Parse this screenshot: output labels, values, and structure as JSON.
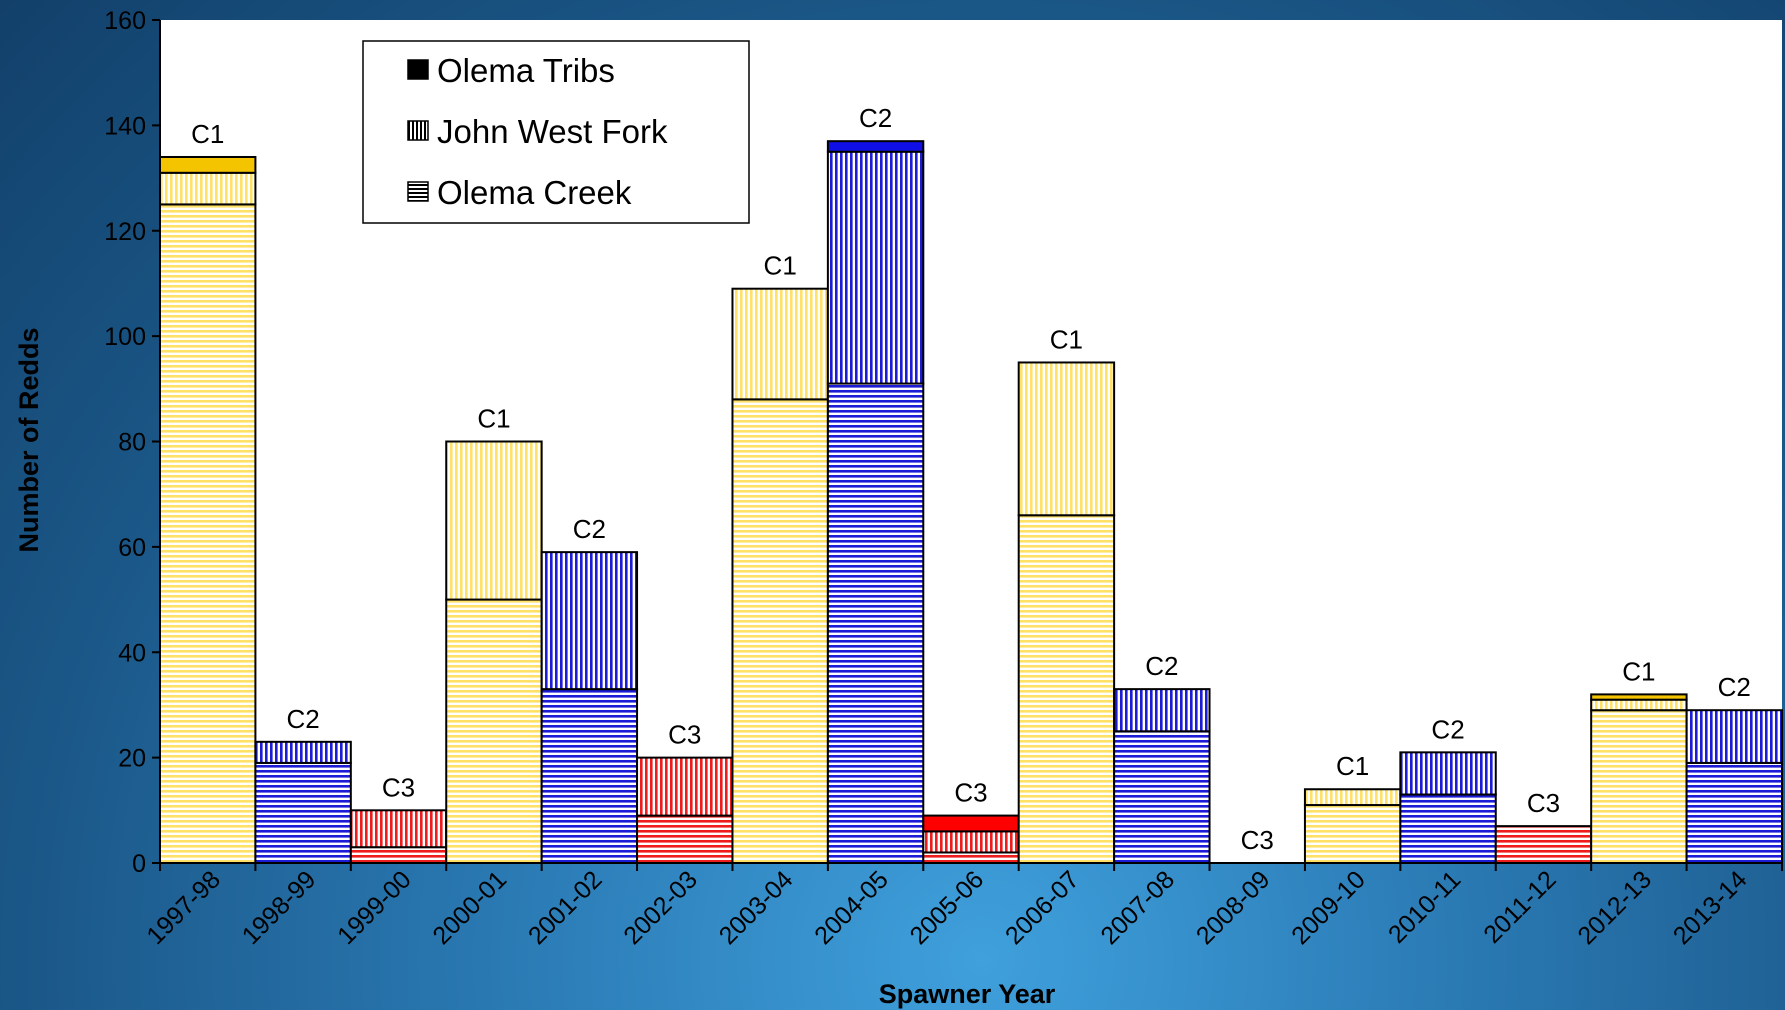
{
  "chart_data": {
    "type": "bar",
    "stacked": true,
    "xlabel": "Spawner Year",
    "ylabel": "Number of Redds",
    "ylim": [
      0,
      160
    ],
    "yticks": [
      0,
      20,
      40,
      60,
      80,
      100,
      120,
      140,
      160
    ],
    "categories": [
      "1997-98",
      "1998-99",
      "1999-00",
      "2000-01",
      "2001-02",
      "2002-03",
      "2003-04",
      "2004-05",
      "2005-06",
      "2006-07",
      "2007-08",
      "2008-09",
      "2009-10",
      "2010-11",
      "2011-12",
      "2012-13",
      "2013-14"
    ],
    "cohort_labels": [
      "C1",
      "C2",
      "C3",
      "C1",
      "C2",
      "C3",
      "C1",
      "C2",
      "C3",
      "C1",
      "C2",
      "C3",
      "C1",
      "C2",
      "C3",
      "C1",
      "C2"
    ],
    "cohort_colors": {
      "C1": "#ffe168",
      "C2": "#1c1cd6",
      "C3": "#ee1c1c"
    },
    "cohort_solid_colors": {
      "C1": "#f5c400",
      "C2": "#1010e6",
      "C3": "#ff0000"
    },
    "series": [
      {
        "name": "Olema Creek",
        "pattern": "horizontal-stripes",
        "values": [
          125,
          19,
          3,
          50,
          33,
          9,
          88,
          91,
          2,
          66,
          25,
          0,
          11,
          13,
          7,
          29,
          19
        ]
      },
      {
        "name": "John West Fork",
        "pattern": "vertical-stripes",
        "values": [
          6,
          4,
          7,
          30,
          26,
          11,
          21,
          44,
          4,
          29,
          8,
          0,
          3,
          8,
          0,
          2,
          10
        ]
      },
      {
        "name": "Olema Tribs",
        "pattern": "solid",
        "values": [
          3,
          0,
          0,
          0,
          0,
          0,
          0,
          2,
          3,
          0,
          0,
          0,
          0,
          0,
          0,
          1,
          0
        ]
      }
    ],
    "legend": {
      "placement": "top-left",
      "order": [
        "Olema Tribs",
        "John West Fork",
        "Olema Creek"
      ]
    },
    "grid": false
  }
}
